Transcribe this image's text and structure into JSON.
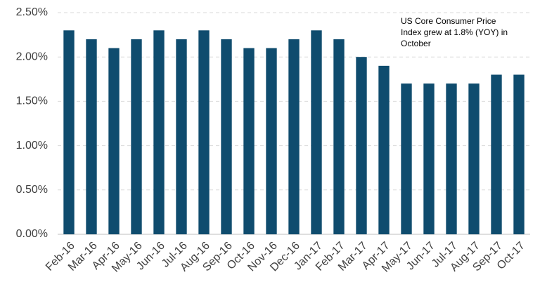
{
  "chart_data": {
    "type": "bar",
    "annotation": [
      "US Core Consumer Price",
      "Index grew at 1.8% (YOY) in",
      "October"
    ],
    "categories": [
      "Feb-16",
      "Mar-16",
      "Apr-16",
      "May-16",
      "Jun-16",
      "Jul-16",
      "Aug-16",
      "Sep-16",
      "Oct-16",
      "Nov-16",
      "Dec-16",
      "Jan-17",
      "Feb-17",
      "Mar-17",
      "Apr-17",
      "May-17",
      "Jun-17",
      "Jul-17",
      "Aug-17",
      "Sep-17",
      "Oct-17"
    ],
    "values": [
      2.3,
      2.2,
      2.1,
      2.2,
      2.3,
      2.2,
      2.3,
      2.2,
      2.1,
      2.1,
      2.2,
      2.3,
      2.2,
      2.0,
      1.9,
      1.7,
      1.7,
      1.7,
      1.7,
      1.8,
      1.8
    ],
    "color": "#0f4c6e",
    "ylim": [
      0,
      2.5
    ],
    "yticks": [
      {
        "value": 0,
        "label": "0.00%"
      },
      {
        "value": 0.5,
        "label": "0.50%"
      },
      {
        "value": 1,
        "label": "1.00%"
      },
      {
        "value": 1.5,
        "label": "1.50%"
      },
      {
        "value": 2,
        "label": "2.00%"
      },
      {
        "value": 2.5,
        "label": "2.50%"
      }
    ],
    "grid": true
  }
}
